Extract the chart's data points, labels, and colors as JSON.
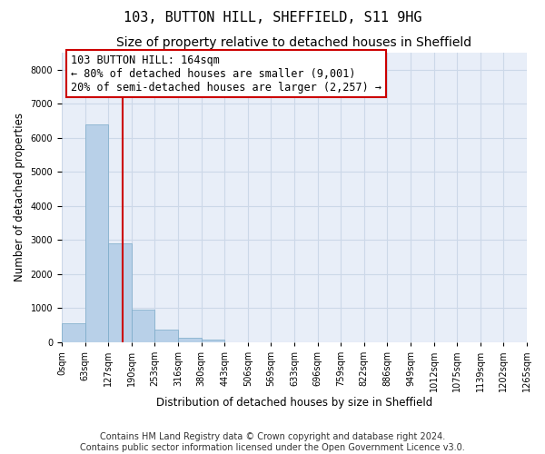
{
  "title": "103, BUTTON HILL, SHEFFIELD, S11 9HG",
  "subtitle": "Size of property relative to detached houses in Sheffield",
  "xlabel": "Distribution of detached houses by size in Sheffield",
  "ylabel": "Number of detached properties",
  "bar_values": [
    550,
    6400,
    2900,
    950,
    370,
    130,
    70,
    0,
    0,
    0,
    0,
    0,
    0,
    0,
    0,
    0,
    0,
    0,
    0,
    0
  ],
  "bar_color": "#b8d0e8",
  "bar_edge_color": "#7aaac8",
  "x_tick_labels": [
    "0sqm",
    "63sqm",
    "127sqm",
    "190sqm",
    "253sqm",
    "316sqm",
    "380sqm",
    "443sqm",
    "506sqm",
    "569sqm",
    "633sqm",
    "696sqm",
    "759sqm",
    "822sqm",
    "886sqm",
    "949sqm",
    "1012sqm",
    "1075sqm",
    "1139sqm",
    "1202sqm",
    "1265sqm"
  ],
  "num_bars": 20,
  "bin_width": 63,
  "property_size": 164,
  "red_line_color": "#cc0000",
  "annotation_line1": "103 BUTTON HILL: 164sqm",
  "annotation_line2": "← 80% of detached houses are smaller (9,001)",
  "annotation_line3": "20% of semi-detached houses are larger (2,257) →",
  "annotation_box_color": "#ffffff",
  "annotation_box_edge_color": "#cc0000",
  "ylim": [
    0,
    8500
  ],
  "yticks": [
    0,
    1000,
    2000,
    3000,
    4000,
    5000,
    6000,
    7000,
    8000
  ],
  "grid_color": "#ccd8e8",
  "plot_bg_color": "#e8eef8",
  "fig_bg_color": "#ffffff",
  "footer_text": "Contains HM Land Registry data © Crown copyright and database right 2024.\nContains public sector information licensed under the Open Government Licence v3.0.",
  "title_fontsize": 11,
  "subtitle_fontsize": 10,
  "axis_label_fontsize": 8.5,
  "tick_fontsize": 7,
  "annotation_fontsize": 8.5,
  "footer_fontsize": 7
}
